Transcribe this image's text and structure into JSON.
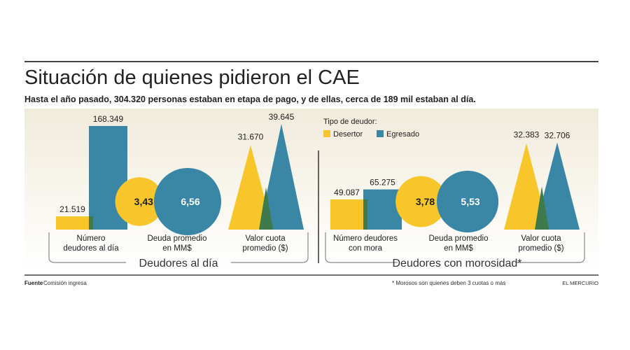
{
  "title": "Situación de quienes pidieron el CAE",
  "subtitle": "Hasta el año pasado, 304.320 personas estaban en etapa de pago, y de ellas, cerca de 189 mil estaban al día.",
  "legend": {
    "title": "Tipo de deudor:",
    "items": [
      "Desertor",
      "Egresado"
    ]
  },
  "colors": {
    "desertor": "#F6C62A",
    "egresado": "#3A86A6",
    "overlap": "#3F7A4A",
    "panel": "#F3EEDF"
  },
  "footer": {
    "source_label": "Fuente",
    "source": "Comisión ingresa",
    "note": "* Morosos son quienes deben 3 cuotas o más",
    "brand": "EL MERCURIO"
  },
  "chart_data": [
    {
      "type": "bar",
      "group": "Deudores al día",
      "metrics": [
        {
          "label": "Número deudores al día",
          "shape": "bar",
          "desertor": 21519,
          "egresado": 168349,
          "desertor_label": "21.519",
          "egresado_label": "168.349"
        },
        {
          "label": "Deuda promedio en MM$",
          "shape": "circle",
          "desertor": 3.43,
          "egresado": 6.56,
          "desertor_label": "3,43",
          "egresado_label": "6,56"
        },
        {
          "label": "Valor cuota promedio ($)",
          "shape": "triangle",
          "desertor": 31670,
          "egresado": 39645,
          "desertor_label": "31.670",
          "egresado_label": "39.645"
        }
      ]
    },
    {
      "type": "bar",
      "group": "Deudores con morosidad*",
      "metrics": [
        {
          "label": "Número deudores con mora",
          "shape": "bar",
          "desertor": 49087,
          "egresado": 65275,
          "desertor_label": "49.087",
          "egresado_label": "65.275"
        },
        {
          "label": "Deuda promedio en MM$",
          "shape": "circle",
          "desertor": 3.78,
          "egresado": 5.53,
          "desertor_label": "3,78",
          "egresado_label": "5,53"
        },
        {
          "label": "Valor cuota promedio ($)",
          "shape": "triangle",
          "desertor": 32383,
          "egresado": 32706,
          "desertor_label": "32.383",
          "egresado_label": "32.706"
        }
      ]
    }
  ]
}
